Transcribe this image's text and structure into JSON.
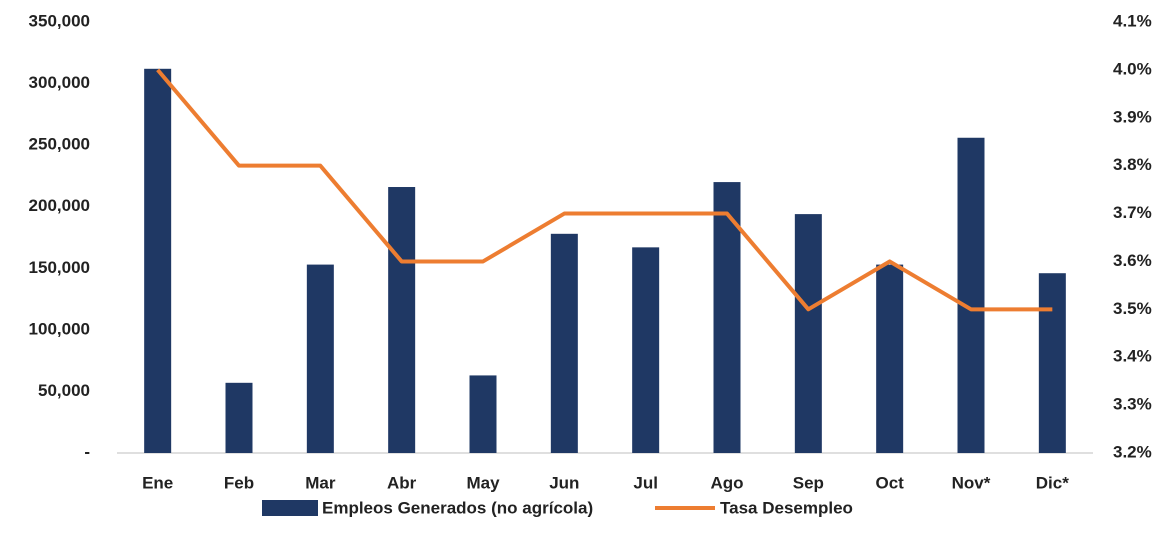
{
  "chart_data": {
    "type": "bar",
    "categories": [
      "Ene",
      "Feb",
      "Mar",
      "Abr",
      "May",
      "Jun",
      "Jul",
      "Ago",
      "Sep",
      "Oct",
      "Nov*",
      "Dic*"
    ],
    "series": [
      {
        "name": "Empleos Generados (no agrícola)",
        "type": "bar",
        "color": "#1f3864",
        "values": [
          312000,
          57000,
          153000,
          216000,
          63000,
          178000,
          167000,
          220000,
          194000,
          153000,
          256000,
          146000
        ]
      },
      {
        "name": "Tasa Desempleo",
        "type": "line",
        "axis": "y2",
        "color": "#ed7d31",
        "values": [
          4.0,
          3.8,
          3.8,
          3.6,
          3.6,
          3.7,
          3.7,
          3.7,
          3.5,
          3.6,
          3.5,
          3.5
        ]
      }
    ],
    "ylim": [
      0,
      350000
    ],
    "yticks": [
      {
        "value": 0,
        "label": "-"
      },
      {
        "value": 50000,
        "label": "50,000"
      },
      {
        "value": 100000,
        "label": "100,000"
      },
      {
        "value": 150000,
        "label": "150,000"
      },
      {
        "value": 200000,
        "label": "200,000"
      },
      {
        "value": 250000,
        "label": "250,000"
      },
      {
        "value": 300000,
        "label": "300,000"
      },
      {
        "value": 350000,
        "label": "350,000"
      }
    ],
    "y2lim": [
      3.2,
      4.1
    ],
    "y2ticks": [
      {
        "value": 3.2,
        "label": "3.2%"
      },
      {
        "value": 3.3,
        "label": "3.3%"
      },
      {
        "value": 3.4,
        "label": "3.4%"
      },
      {
        "value": 3.5,
        "label": "3.5%"
      },
      {
        "value": 3.6,
        "label": "3.6%"
      },
      {
        "value": 3.7,
        "label": "3.7%"
      },
      {
        "value": 3.8,
        "label": "3.8%"
      },
      {
        "value": 3.9,
        "label": "3.9%"
      },
      {
        "value": 4.0,
        "label": "4.0%"
      },
      {
        "value": 4.1,
        "label": "4.1%"
      }
    ],
    "legend": "bottom"
  }
}
